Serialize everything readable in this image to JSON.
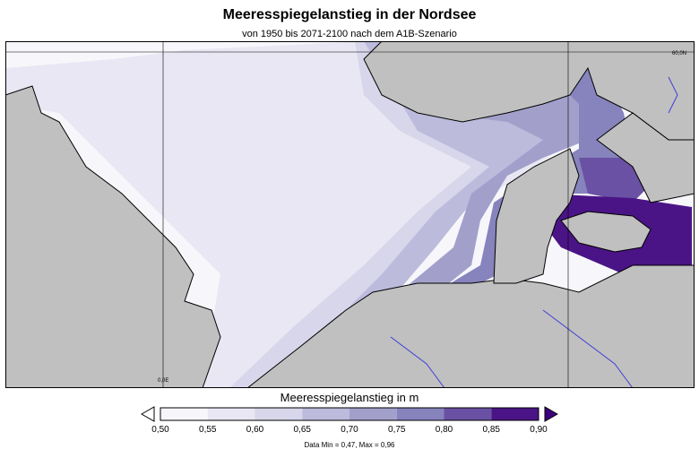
{
  "title": "Meeresspiegelanstieg in der Nordsee",
  "subtitle": "von 1950 bis 2071-2100 nach dem A1B-Szenario",
  "map": {
    "grid_labels": {
      "longitude": "0,0E",
      "latitude": "60,0N"
    },
    "land_color": "#c0c0c0",
    "river_color": "#3f3fd8"
  },
  "legend": {
    "title": "Meeresspiegelanstieg in m",
    "ticks": [
      "0,50",
      "0,55",
      "0,60",
      "0,65",
      "0,70",
      "0,75",
      "0,80",
      "0,85",
      "0,90"
    ],
    "colors": [
      "#f7f7fb",
      "#e8e7f3",
      "#d7d6ea",
      "#bcbbdc",
      "#a2a0cb",
      "#8683bd",
      "#6a51a3",
      "#4a1486"
    ],
    "under_color": "#ffffff",
    "over_color": "#3f007d",
    "data_info": "Data Min = 0,47, Max = 0,96"
  }
}
